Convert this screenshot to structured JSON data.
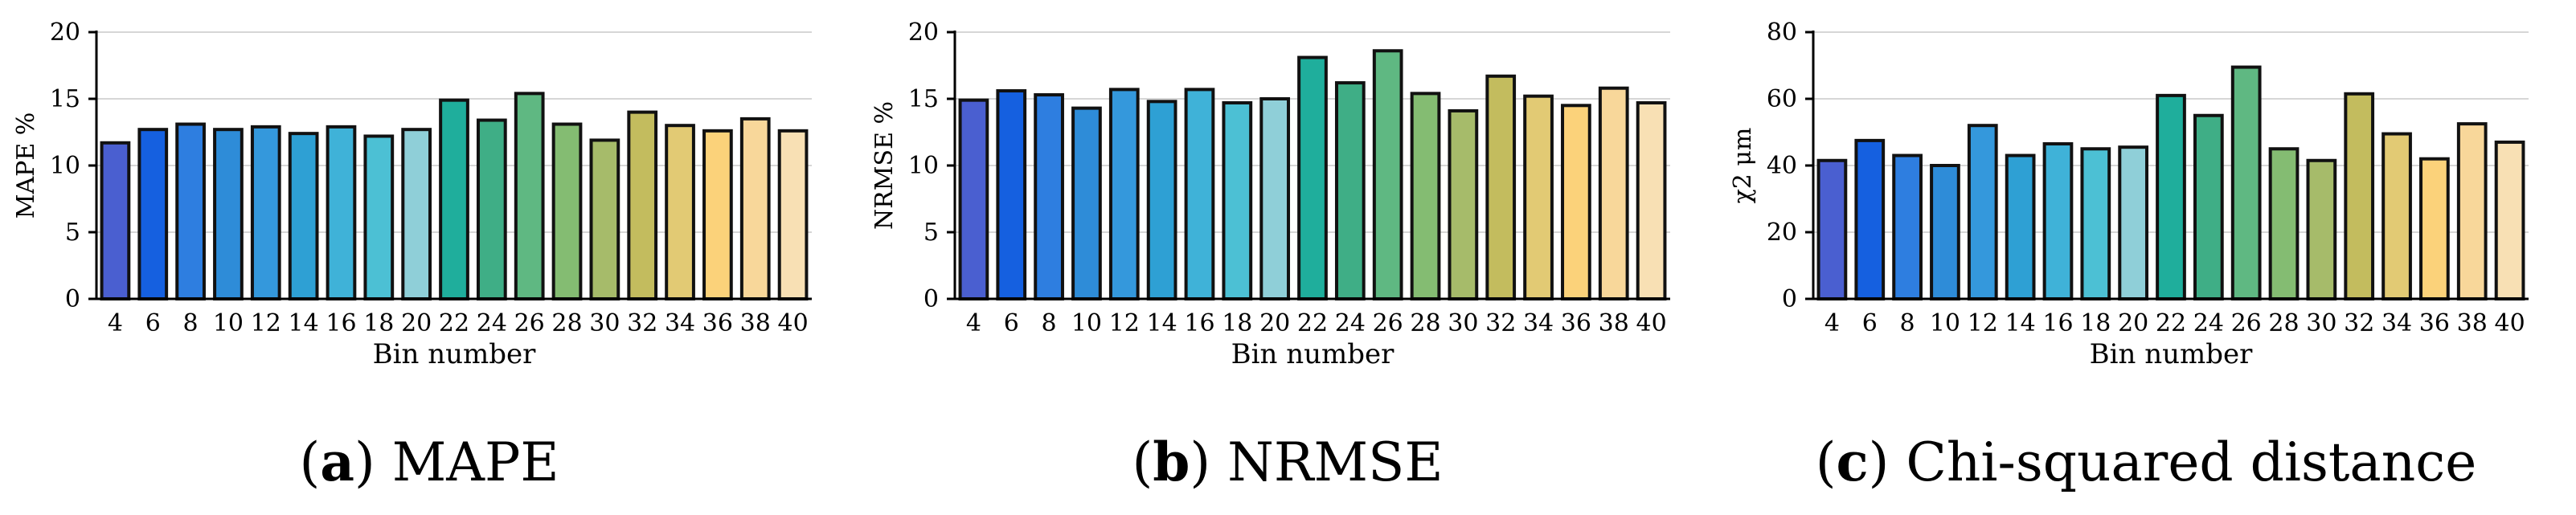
{
  "chart_data": [
    {
      "type": "bar",
      "caption_letter": "a",
      "caption_text": "MAPE",
      "xlabel": "Bin number",
      "ylabel": "MAPE %",
      "ylim": [
        0,
        20
      ],
      "yticks": [
        "0",
        "5",
        "10",
        "15",
        "20"
      ],
      "grid": "horizontal",
      "categories": [
        "4",
        "6",
        "8",
        "10",
        "12",
        "14",
        "16",
        "18",
        "20",
        "22",
        "24",
        "26",
        "28",
        "30",
        "32",
        "34",
        "36",
        "38",
        "40"
      ],
      "values": [
        11.7,
        12.7,
        13.1,
        12.7,
        12.9,
        12.4,
        12.9,
        12.2,
        12.7,
        14.9,
        13.4,
        15.4,
        13.1,
        11.9,
        14.0,
        13.0,
        12.6,
        13.5,
        12.6
      ]
    },
    {
      "type": "bar",
      "caption_letter": "b",
      "caption_text": "NRMSE",
      "xlabel": "Bin number",
      "ylabel": "NRMSE %",
      "ylim": [
        0,
        20
      ],
      "yticks": [
        "0",
        "5",
        "10",
        "15",
        "20"
      ],
      "grid": "horizontal",
      "categories": [
        "4",
        "6",
        "8",
        "10",
        "12",
        "14",
        "16",
        "18",
        "20",
        "22",
        "24",
        "26",
        "28",
        "30",
        "32",
        "34",
        "36",
        "38",
        "40"
      ],
      "values": [
        14.9,
        15.6,
        15.3,
        14.3,
        15.7,
        14.8,
        15.7,
        14.7,
        15.0,
        18.1,
        16.2,
        18.6,
        15.4,
        14.1,
        16.7,
        15.2,
        14.5,
        15.8,
        14.7
      ]
    },
    {
      "type": "bar",
      "caption_letter": "c",
      "caption_text": "Chi-squared distance",
      "xlabel": "Bin number",
      "ylabel": "χ2 μm",
      "ylim": [
        0,
        80
      ],
      "yticks": [
        "0",
        "20",
        "40",
        "60",
        "80"
      ],
      "grid": "horizontal",
      "categories": [
        "4",
        "6",
        "8",
        "10",
        "12",
        "14",
        "16",
        "18",
        "20",
        "22",
        "24",
        "26",
        "28",
        "30",
        "32",
        "34",
        "36",
        "38",
        "40"
      ],
      "values": [
        41.5,
        47.5,
        43.0,
        40.0,
        52.0,
        43.0,
        46.5,
        45.0,
        45.5,
        61.0,
        55.0,
        69.5,
        45.0,
        41.5,
        61.5,
        49.5,
        42.0,
        52.5,
        47.0
      ]
    }
  ],
  "bar_colors": [
    "#4a5fd0",
    "#1560e0",
    "#2e7ee0",
    "#2e8cd8",
    "#3498dc",
    "#2ea0d4",
    "#3fb2d8",
    "#4cc0d4",
    "#8fcfd8",
    "#1fae9c",
    "#3fae86",
    "#5fb882",
    "#84bc72",
    "#a6bb6a",
    "#c3bc5e",
    "#e2ca74",
    "#fbd27a",
    "#f8d79a",
    "#f8e0b4"
  ]
}
